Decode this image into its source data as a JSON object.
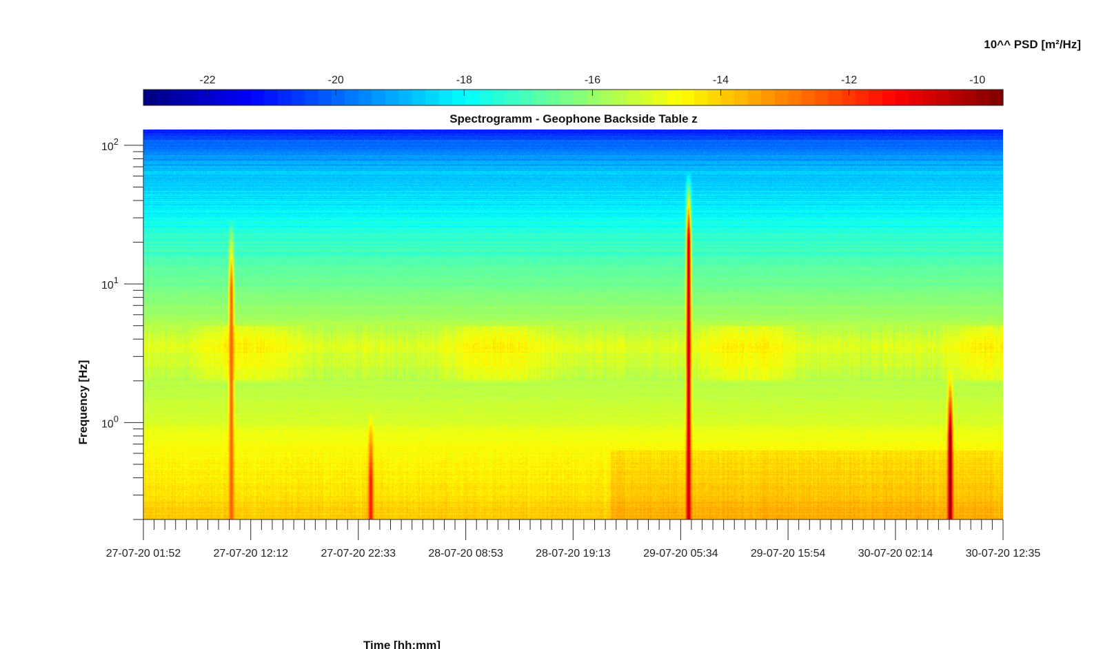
{
  "chart_data": {
    "type": "heatmap",
    "title": "Spectrogramm - Geophone Backside Table z",
    "xlabel": "Time [hh:mm]",
    "ylabel": "Frequency [Hz]",
    "colorbar_label": "10^^ PSD [m²/Hz]",
    "colormap": "jet",
    "y_scale": "log",
    "ylim": [
      0.2,
      130
    ],
    "clim": [
      -23.0,
      -9.6
    ],
    "colorbar_ticks": [
      "-22",
      "-20",
      "-18",
      "-16",
      "-14",
      "-12",
      "-10"
    ],
    "colorbar_tick_values": [
      -22,
      -20,
      -18,
      -16,
      -14,
      -12,
      -10
    ],
    "y_tick_values": [
      1,
      10,
      100
    ],
    "y_tick_bases": [
      "10",
      "10",
      "10"
    ],
    "y_tick_exponents": [
      "0",
      "1",
      "2"
    ],
    "x_tick_labels": [
      "27-07-20 01:52",
      "27-07-20 12:12",
      "27-07-20 22:33",
      "28-07-20 08:53",
      "28-07-20 19:13",
      "29-07-20 05:34",
      "29-07-20 15:54",
      "30-07-20 02:14",
      "30-07-20 12:35"
    ],
    "x_hours_from_start": [
      0,
      10.33,
      20.68,
      31.02,
      41.35,
      51.7,
      62.03,
      72.37,
      82.72
    ],
    "events": [
      {
        "time": "27-07-20 10:20",
        "f_top_hz": 30,
        "peak": -12.5
      },
      {
        "time": "27-07-20 23:45",
        "f_top_hz": 1.2,
        "peak": -11.5
      },
      {
        "time": "29-07-20 06:20",
        "f_top_hz": 65,
        "peak": -10.5
      },
      {
        "time": "30-07-20 07:30",
        "f_top_hz": 2.5,
        "peak": -9.8
      }
    ]
  },
  "colors": {
    "background": "#ffffff",
    "axis": "#262626"
  }
}
